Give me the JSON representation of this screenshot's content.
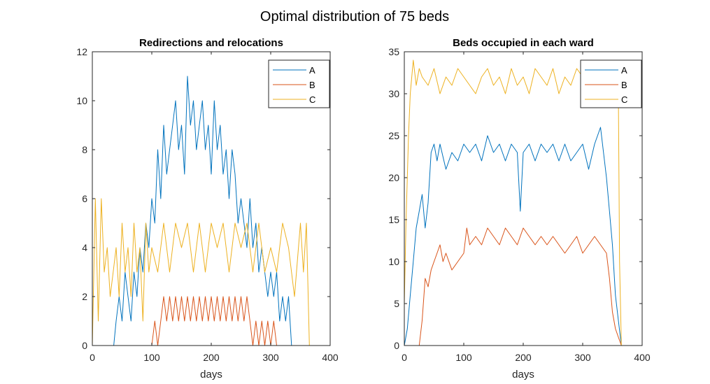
{
  "figure": {
    "suptitle": "Optimal distribution of 75 beds"
  },
  "chart_data": [
    {
      "type": "line",
      "title": "Redirections and relocations",
      "xlabel": "days",
      "ylabel": "",
      "xlim": [
        0,
        400
      ],
      "ylim": [
        0,
        12
      ],
      "xticks": [
        0,
        100,
        200,
        300,
        400
      ],
      "yticks": [
        0,
        2,
        4,
        6,
        8,
        10,
        12
      ],
      "grid": false,
      "legend": "top-right",
      "series": [
        {
          "name": "A",
          "color": "#0072BD",
          "x": [
            0,
            36,
            40,
            45,
            50,
            55,
            60,
            65,
            70,
            75,
            80,
            85,
            90,
            95,
            100,
            105,
            110,
            115,
            120,
            125,
            130,
            135,
            140,
            145,
            150,
            155,
            160,
            165,
            170,
            175,
            180,
            185,
            190,
            195,
            200,
            205,
            210,
            215,
            220,
            225,
            230,
            235,
            240,
            245,
            250,
            255,
            260,
            265,
            270,
            275,
            280,
            285,
            290,
            295,
            300,
            305,
            310,
            315,
            320,
            325,
            330,
            335,
            365
          ],
          "y": [
            0,
            0,
            1,
            2,
            1,
            3,
            2,
            1,
            3,
            2,
            4,
            3,
            5,
            4,
            6,
            5,
            8,
            6,
            9,
            7,
            8,
            9,
            10,
            8,
            9,
            7,
            11,
            9,
            10,
            8,
            9,
            10,
            8,
            9,
            7,
            10,
            8,
            9,
            7,
            8,
            6,
            8,
            7,
            5,
            6,
            5,
            4,
            6,
            4,
            5,
            3,
            4,
            3,
            2,
            3,
            2,
            3,
            1,
            2,
            1,
            2,
            0,
            0
          ]
        },
        {
          "name": "B",
          "color": "#D95319",
          "x": [
            0,
            100,
            105,
            110,
            115,
            120,
            125,
            130,
            135,
            140,
            145,
            150,
            155,
            160,
            165,
            170,
            175,
            180,
            185,
            190,
            195,
            200,
            205,
            210,
            215,
            220,
            225,
            230,
            235,
            240,
            245,
            250,
            255,
            260,
            265,
            270,
            275,
            280,
            285,
            290,
            295,
            300,
            305,
            310,
            365
          ],
          "y": [
            0,
            0,
            1,
            0,
            1,
            2,
            1,
            2,
            1,
            2,
            1,
            2,
            1,
            2,
            1,
            2,
            1,
            2,
            1,
            2,
            1,
            2,
            1,
            2,
            1,
            2,
            1,
            2,
            1,
            2,
            1,
            2,
            1,
            2,
            1,
            0,
            1,
            0,
            1,
            0,
            1,
            0,
            1,
            0,
            0
          ]
        },
        {
          "name": "C",
          "color": "#EDB120",
          "x": [
            0,
            5,
            10,
            15,
            20,
            25,
            30,
            35,
            40,
            45,
            50,
            55,
            60,
            65,
            70,
            75,
            80,
            85,
            90,
            95,
            100,
            110,
            120,
            130,
            140,
            150,
            160,
            170,
            180,
            190,
            200,
            210,
            220,
            230,
            240,
            250,
            260,
            270,
            280,
            290,
            300,
            310,
            320,
            330,
            340,
            350,
            355,
            360,
            365
          ],
          "y": [
            0,
            6,
            1,
            6,
            3,
            4,
            2,
            3,
            4,
            2,
            5,
            3,
            4,
            2,
            5,
            3,
            4,
            1,
            5,
            3,
            4,
            3,
            5,
            3,
            5,
            4,
            5,
            3,
            5,
            3,
            5,
            4,
            5,
            3,
            5,
            4,
            5,
            3,
            5,
            3,
            4,
            3,
            5,
            4,
            2,
            5,
            3,
            5,
            0
          ]
        }
      ]
    },
    {
      "type": "line",
      "title": "Beds occupied in each ward",
      "xlabel": "days",
      "ylabel": "",
      "xlim": [
        0,
        400
      ],
      "ylim": [
        0,
        35
      ],
      "xticks": [
        0,
        100,
        200,
        300,
        400
      ],
      "yticks": [
        0,
        5,
        10,
        15,
        20,
        25,
        30,
        35
      ],
      "grid": false,
      "legend": "top-right",
      "series": [
        {
          "name": "A",
          "color": "#0072BD",
          "x": [
            0,
            5,
            10,
            15,
            20,
            25,
            30,
            35,
            40,
            45,
            50,
            55,
            60,
            70,
            80,
            90,
            100,
            110,
            120,
            130,
            140,
            150,
            160,
            170,
            180,
            190,
            195,
            200,
            210,
            220,
            230,
            240,
            250,
            260,
            270,
            280,
            290,
            300,
            310,
            320,
            330,
            340,
            345,
            350,
            355,
            360,
            365
          ],
          "y": [
            0,
            2,
            6,
            10,
            14,
            16,
            18,
            14,
            17,
            23,
            24,
            22,
            24,
            21,
            23,
            22,
            24,
            23,
            24,
            22,
            25,
            23,
            24,
            22,
            24,
            23,
            16,
            23,
            24,
            22,
            24,
            23,
            24,
            22,
            24,
            22,
            23,
            24,
            21,
            24,
            26,
            20,
            16,
            12,
            6,
            3,
            0
          ]
        },
        {
          "name": "B",
          "color": "#D95319",
          "x": [
            0,
            25,
            30,
            35,
            40,
            45,
            50,
            55,
            60,
            65,
            70,
            80,
            90,
            100,
            105,
            110,
            120,
            130,
            140,
            150,
            160,
            170,
            180,
            190,
            200,
            210,
            220,
            230,
            240,
            250,
            260,
            270,
            280,
            290,
            300,
            310,
            320,
            330,
            340,
            345,
            350,
            355,
            360,
            365
          ],
          "y": [
            0,
            0,
            3,
            8,
            7,
            9,
            10,
            11,
            12,
            10,
            11,
            9,
            10,
            11,
            14,
            12,
            13,
            12,
            14,
            13,
            12,
            14,
            13,
            12,
            14,
            13,
            12,
            13,
            12,
            13,
            12,
            11,
            12,
            13,
            11,
            12,
            13,
            12,
            11,
            8,
            4,
            2,
            1,
            0
          ]
        },
        {
          "name": "C",
          "color": "#EDB120",
          "x": [
            0,
            3,
            5,
            7,
            10,
            15,
            20,
            25,
            30,
            40,
            50,
            60,
            70,
            80,
            90,
            100,
            110,
            120,
            130,
            140,
            150,
            160,
            170,
            180,
            190,
            200,
            210,
            220,
            230,
            240,
            250,
            260,
            270,
            280,
            290,
            300,
            310,
            320,
            330,
            340,
            345,
            350,
            355,
            360,
            362,
            365
          ],
          "y": [
            5,
            15,
            20,
            25,
            30,
            34,
            31,
            33,
            32,
            31,
            33,
            30,
            32,
            31,
            33,
            32,
            31,
            30,
            32,
            33,
            31,
            32,
            30,
            33,
            31,
            32,
            30,
            33,
            32,
            31,
            33,
            30,
            32,
            31,
            33,
            32,
            31,
            30,
            33,
            34,
            34,
            33,
            32,
            30,
            10,
            0
          ]
        }
      ]
    }
  ]
}
